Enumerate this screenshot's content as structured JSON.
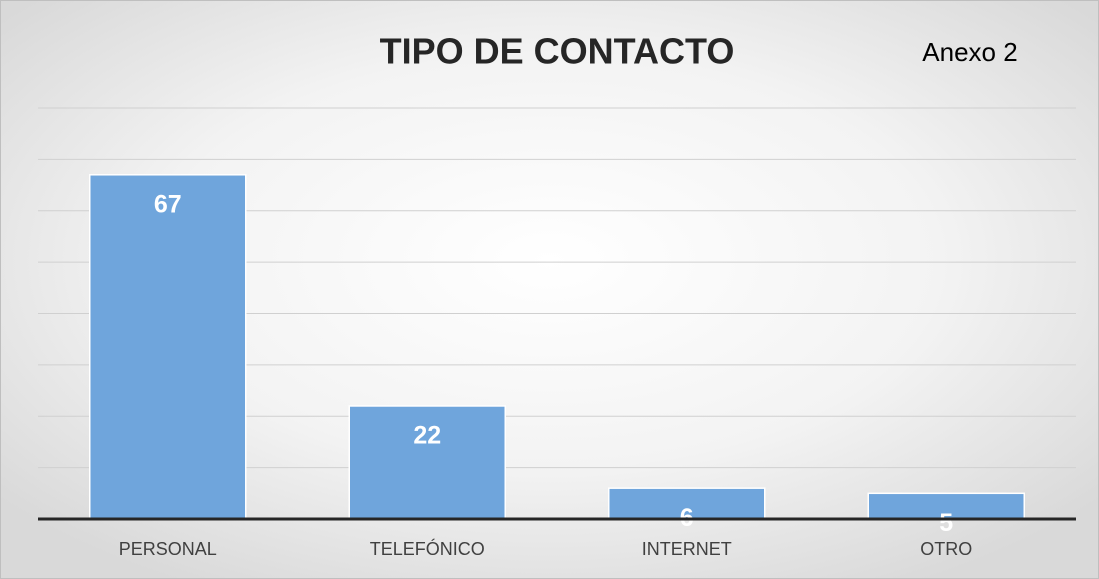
{
  "chart_data": {
    "type": "bar",
    "title": "TIPO DE CONTACTO",
    "annotation": "Anexo 2",
    "categories": [
      "PERSONAL",
      "TELEFÓNICO",
      "INTERNET",
      "OTRO"
    ],
    "values": [
      67,
      22,
      6,
      5
    ],
    "color": "#6fa5dc",
    "ylim": [
      0,
      80
    ],
    "yticks": [
      0,
      10,
      20,
      30,
      40,
      50,
      60,
      70,
      80
    ],
    "grid": true
  }
}
